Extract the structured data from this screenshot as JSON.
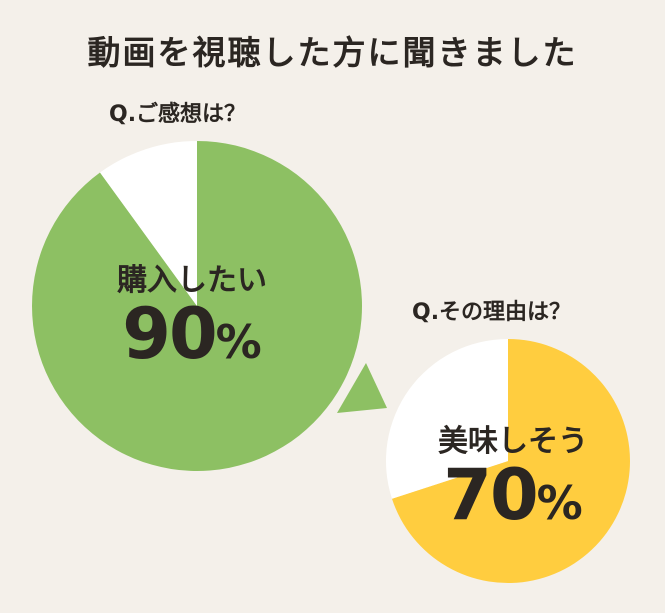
{
  "title": "動画を視聴した方に聞きました",
  "chart_data": [
    {
      "type": "pie",
      "question": "Q.ご感想は？",
      "slices": [
        {
          "label": "購入したい",
          "value": 90,
          "color": "#8dc063"
        },
        {
          "label": "",
          "value": 10,
          "color": "#ffffff"
        }
      ],
      "highlight_label": "購入したい",
      "highlight_value": "90",
      "unit": "%"
    },
    {
      "type": "pie",
      "question": "Q.その理由は？",
      "slices": [
        {
          "label": "美味しそう",
          "value": 70,
          "color": "#ffcd3f"
        },
        {
          "label": "",
          "value": 30,
          "color": "#ffffff"
        }
      ],
      "highlight_label": "美味しそう",
      "highlight_value": "70",
      "unit": "%"
    }
  ],
  "callout_color": "#8dc063"
}
